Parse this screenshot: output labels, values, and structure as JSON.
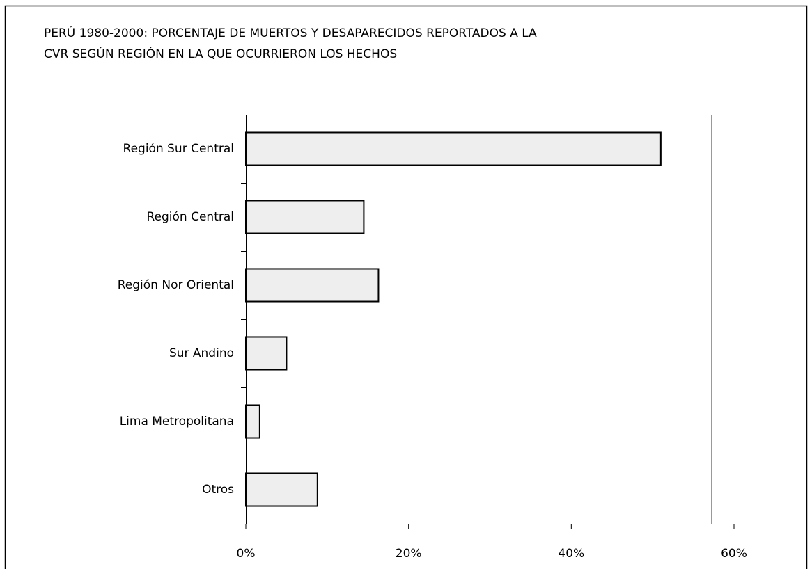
{
  "chart_data": {
    "type": "barh",
    "title": [
      "PERÚ 1980-2000: PORCENTAJE DE MUERTOS Y DESAPARECIDOS REPORTADOS A LA",
      "CVR SEGÚN REGIÓN EN LA QUE OCURRIERON LOS HECHOS"
    ],
    "categories": [
      "Región Sur Central",
      "Región Central",
      "Región Nor Oriental",
      "Sur Andino",
      "Lima Metropolitana",
      "Otros"
    ],
    "values": [
      51,
      14.5,
      16.3,
      5,
      1.7,
      8.8
    ],
    "color": "#eeeeee",
    "xlim": [
      0,
      60
    ],
    "xticks": [
      {
        "value": 0,
        "label": "0%"
      },
      {
        "value": 20,
        "label": "20%"
      },
      {
        "value": 40,
        "label": "40%"
      },
      {
        "value": 60,
        "label": "60%"
      }
    ],
    "grid": false
  }
}
